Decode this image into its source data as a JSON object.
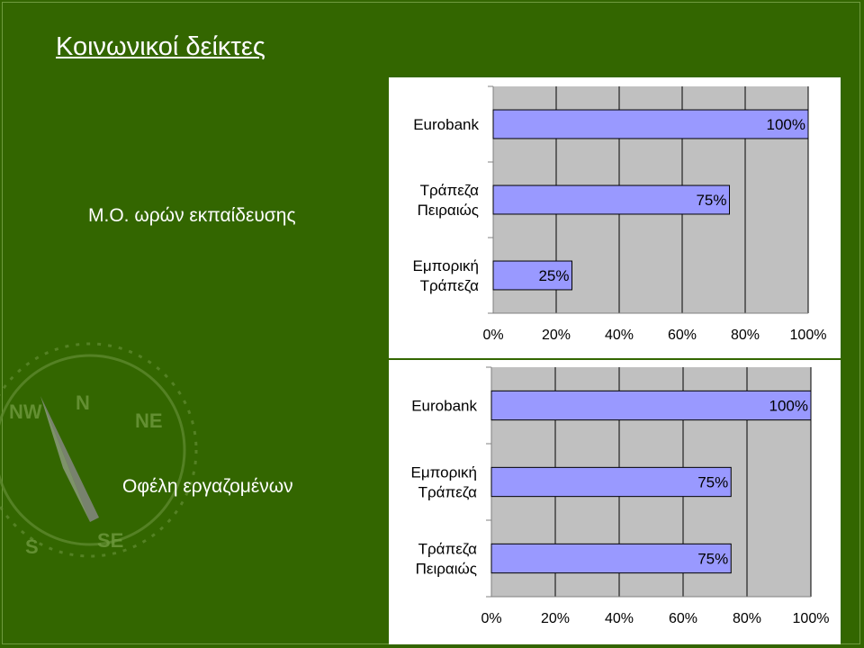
{
  "slide": {
    "title": "Κοινωνικοί δείκτες",
    "background_color": "#336600",
    "decoration": "compass-rose"
  },
  "sections": [
    {
      "label": "Μ.Ο. ωρών εκπαίδευσης"
    },
    {
      "label": "Οφέλη εργαζομένων"
    }
  ],
  "chart_data": [
    {
      "type": "bar",
      "orientation": "horizontal",
      "title": "",
      "xlabel": "",
      "ylabel": "",
      "categories": [
        "Eurobank",
        "Τράπεζα Πειραιώς",
        "Εμπορική Τράπεζα"
      ],
      "category_lines": [
        [
          "Eurobank"
        ],
        [
          "Τράπεζα",
          "Πειραιώς"
        ],
        [
          "Εμπορική",
          "Τράπεζα"
        ]
      ],
      "values": [
        100,
        75,
        25
      ],
      "data_labels": [
        "100%",
        "75%",
        "25%"
      ],
      "xlim": [
        0,
        100
      ],
      "xticks": [
        "0%",
        "20%",
        "40%",
        "60%",
        "80%",
        "100%"
      ],
      "grid": true,
      "legend": "none",
      "bar_color": "#9999ff",
      "plot_background": "#c0c0c0"
    },
    {
      "type": "bar",
      "orientation": "horizontal",
      "title": "",
      "xlabel": "",
      "ylabel": "",
      "categories": [
        "Eurobank",
        "Εμπορική Τράπεζα",
        "Τράπεζα Πειραιώς"
      ],
      "category_lines": [
        [
          "Eurobank"
        ],
        [
          "Εμπορική",
          "Τράπεζα"
        ],
        [
          "Τράπεζα",
          "Πειραιώς"
        ]
      ],
      "values": [
        100,
        75,
        75
      ],
      "data_labels": [
        "100%",
        "75%",
        "75%"
      ],
      "xlim": [
        0,
        100
      ],
      "xticks": [
        "0%",
        "20%",
        "40%",
        "60%",
        "80%",
        "100%"
      ],
      "grid": true,
      "legend": "none",
      "bar_color": "#9999ff",
      "plot_background": "#c0c0c0"
    }
  ]
}
